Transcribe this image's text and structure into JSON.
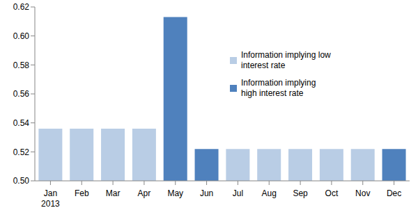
{
  "chart_data": {
    "type": "bar",
    "categories": [
      "Jan 2013",
      "Feb",
      "Mar",
      "Apr",
      "May",
      "Jun",
      "Jul",
      "Aug",
      "Sep",
      "Oct",
      "Nov",
      "Dec"
    ],
    "series": [
      {
        "name": "Information implying low interest rate",
        "color": "#b9cde5",
        "values": [
          0.536,
          0.536,
          0.536,
          0.536,
          null,
          null,
          0.522,
          0.522,
          0.522,
          0.522,
          0.522,
          null
        ]
      },
      {
        "name": "Information implying high interest rate",
        "color": "#4f81bd",
        "values": [
          null,
          null,
          null,
          null,
          0.613,
          0.522,
          null,
          null,
          null,
          null,
          null,
          0.522
        ]
      }
    ],
    "ylim": [
      0.5,
      0.62
    ],
    "yticks": [
      {
        "value": 0.5,
        "label": "0.50"
      },
      0.52,
      0.54,
      0.56,
      0.58,
      {
        "value": 0.6,
        "label": "0.60"
      },
      0.62
    ],
    "grid": false,
    "legend": "upper right"
  }
}
